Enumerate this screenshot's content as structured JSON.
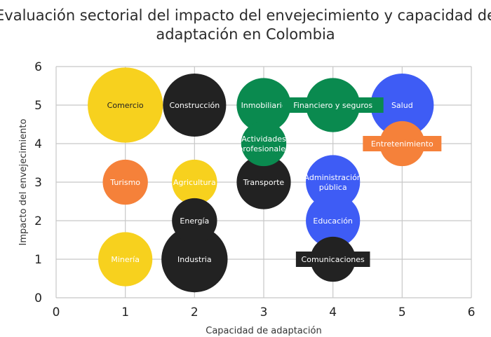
{
  "chart_data": {
    "type": "scatter",
    "title_line1": "Evaluación sectorial del impacto del envejecimiento y capacidad de",
    "title_line2": "adaptación en Colombia",
    "xlabel": "Capacidad de adaptación",
    "ylabel": "Impacto del envejecimiento",
    "xlim": [
      0,
      6
    ],
    "ylim": [
      0,
      6
    ],
    "x_ticks": [
      "0",
      "1",
      "2",
      "3",
      "4",
      "5",
      "6"
    ],
    "y_ticks": [
      "0",
      "1",
      "2",
      "3",
      "4",
      "5",
      "6"
    ],
    "grid": true,
    "colors": {
      "yellow": "#f7d11e",
      "black": "#222222",
      "green": "#0a8a4f",
      "blue": "#3e5cf5",
      "orange": "#f5813a"
    },
    "points": [
      {
        "label": "Comercio",
        "x": 1,
        "y": 5,
        "size": 2.5,
        "color": "yellow",
        "label_color": "#222222"
      },
      {
        "label": "Turismo",
        "x": 1,
        "y": 3,
        "size": 1.5,
        "color": "orange",
        "label_color": "#ffffff"
      },
      {
        "label": "Minería",
        "x": 1,
        "y": 1,
        "size": 1.8,
        "color": "yellow",
        "label_color": "#ffffff"
      },
      {
        "label": "Construcción",
        "x": 2,
        "y": 5,
        "size": 2.1,
        "color": "black",
        "label_color": "#ffffff"
      },
      {
        "label": "Agricultura",
        "x": 2,
        "y": 3,
        "size": 1.5,
        "color": "yellow",
        "label_color": "#ffffff"
      },
      {
        "label": "Energía",
        "x": 2,
        "y": 2,
        "size": 1.5,
        "color": "black",
        "label_color": "#ffffff"
      },
      {
        "label": "Industria",
        "x": 2,
        "y": 1,
        "size": 2.2,
        "color": "black",
        "label_color": "#ffffff"
      },
      {
        "label": "Inmobiliario",
        "x": 3,
        "y": 5,
        "size": 1.8,
        "color": "green",
        "label_color": "#ffffff"
      },
      {
        "label": "Actividades profesionales",
        "label_lines": [
          "Actividades",
          "profesionales"
        ],
        "x": 3,
        "y": 4,
        "size": 1.5,
        "color": "green",
        "label_color": "#ffffff"
      },
      {
        "label": "Transporte",
        "x": 3,
        "y": 3,
        "size": 1.8,
        "color": "black",
        "label_color": "#ffffff"
      },
      {
        "label": "Financiero y seguros",
        "x": 4,
        "y": 5,
        "size": 1.8,
        "color": "green",
        "label_color": "#ffffff",
        "label_box": true
      },
      {
        "label": "Administración pública",
        "label_lines": [
          "Administración",
          "pública"
        ],
        "x": 4,
        "y": 3,
        "size": 1.8,
        "color": "blue",
        "label_color": "#ffffff"
      },
      {
        "label": "Educación",
        "x": 4,
        "y": 2,
        "size": 1.8,
        "color": "blue",
        "label_color": "#ffffff"
      },
      {
        "label": "Comunicaciones",
        "x": 4,
        "y": 1,
        "size": 1.5,
        "color": "black",
        "label_color": "#ffffff",
        "label_box": true
      },
      {
        "label": "Salud",
        "x": 5,
        "y": 5,
        "size": 2.1,
        "color": "blue",
        "label_color": "#ffffff"
      },
      {
        "label": "Entretenimiento",
        "x": 5,
        "y": 4,
        "size": 1.5,
        "color": "orange",
        "label_color": "#ffffff",
        "label_box": true
      }
    ]
  }
}
